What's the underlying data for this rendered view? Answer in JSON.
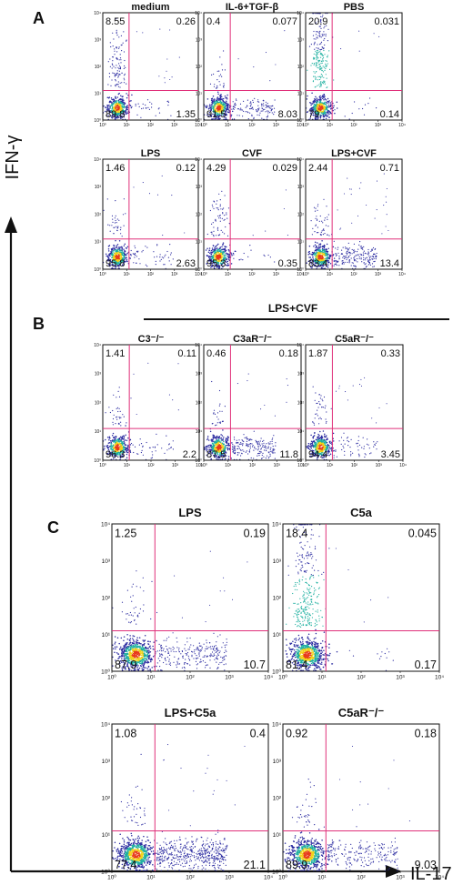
{
  "axes": {
    "x_label": "IL-17",
    "y_label": "IFN-γ",
    "ticks": [
      "10⁰",
      "10¹",
      "10²",
      "10³",
      "10⁴"
    ],
    "xlim": [
      1,
      10000
    ],
    "ylim": [
      1,
      10000
    ],
    "scale": "log"
  },
  "colors": {
    "gate": "#e0307a",
    "frame": "#111111",
    "density_low": "#2a2aa0",
    "density_mid": "#1fb0a0",
    "density_high": "#f2d21a",
    "density_peak": "#e83a1a"
  },
  "panels": [
    {
      "letter": "A"
    },
    {
      "letter": "B",
      "group_label": "LPS+CVF"
    },
    {
      "letter": "C"
    }
  ],
  "chart_data": [
    {
      "type": "scatter",
      "panel": "A",
      "title": "medium",
      "quadrants": {
        "upper_left": "8.55",
        "upper_right": "0.26",
        "lower_left": "89.8",
        "lower_right": "1.35"
      }
    },
    {
      "type": "scatter",
      "panel": "A",
      "title": "IL-6+TGF-β",
      "quadrants": {
        "upper_left": "0.4",
        "upper_right": "0.077",
        "lower_left": "91.5",
        "lower_right": "8.03"
      }
    },
    {
      "type": "scatter",
      "panel": "A",
      "title": "PBS",
      "quadrants": {
        "upper_left": "20.9",
        "upper_right": "0.031",
        "lower_left": "79",
        "lower_right": "0.14"
      }
    },
    {
      "type": "scatter",
      "panel": "A",
      "title": "LPS",
      "quadrants": {
        "upper_left": "1.46",
        "upper_right": "0.12",
        "lower_left": "95.8",
        "lower_right": "2.63"
      }
    },
    {
      "type": "scatter",
      "panel": "A",
      "title": "CVF",
      "quadrants": {
        "upper_left": "4.29",
        "upper_right": "0.029",
        "lower_left": "95.3",
        "lower_right": "0.35"
      }
    },
    {
      "type": "scatter",
      "panel": "A",
      "title": "LPS+CVF",
      "quadrants": {
        "upper_left": "2.44",
        "upper_right": "0.71",
        "lower_left": "83.4",
        "lower_right": "13.4"
      }
    },
    {
      "type": "scatter",
      "panel": "B",
      "title": "C3⁻/⁻",
      "quadrants": {
        "upper_left": "1.41",
        "upper_right": "0.11",
        "lower_left": "96.3",
        "lower_right": "2.2"
      }
    },
    {
      "type": "scatter",
      "panel": "B",
      "title": "C3aR⁻/⁻",
      "quadrants": {
        "upper_left": "0.46",
        "upper_right": "0.18",
        "lower_left": "87.5",
        "lower_right": "11.8"
      }
    },
    {
      "type": "scatter",
      "panel": "B",
      "title": "C5aR⁻/⁻",
      "quadrants": {
        "upper_left": "1.87",
        "upper_right": "0.33",
        "lower_left": "94.4",
        "lower_right": "3.45"
      }
    },
    {
      "type": "scatter",
      "panel": "C",
      "title": "LPS",
      "quadrants": {
        "upper_left": "1.25",
        "upper_right": "0.19",
        "lower_left": "87.9",
        "lower_right": "10.7"
      }
    },
    {
      "type": "scatter",
      "panel": "C",
      "title": "C5a",
      "quadrants": {
        "upper_left": "18.4",
        "upper_right": "0.045",
        "lower_left": "81.4",
        "lower_right": "0.17"
      }
    },
    {
      "type": "scatter",
      "panel": "C",
      "title": "LPS+C5a",
      "quadrants": {
        "upper_left": "1.08",
        "upper_right": "0.4",
        "lower_left": "77.4",
        "lower_right": "21.1"
      }
    },
    {
      "type": "scatter",
      "panel": "C",
      "title": "C5aR⁻/⁻",
      "quadrants": {
        "upper_left": "0.92",
        "upper_right": "0.18",
        "lower_left": "89.9",
        "lower_right": "9.03"
      }
    }
  ]
}
